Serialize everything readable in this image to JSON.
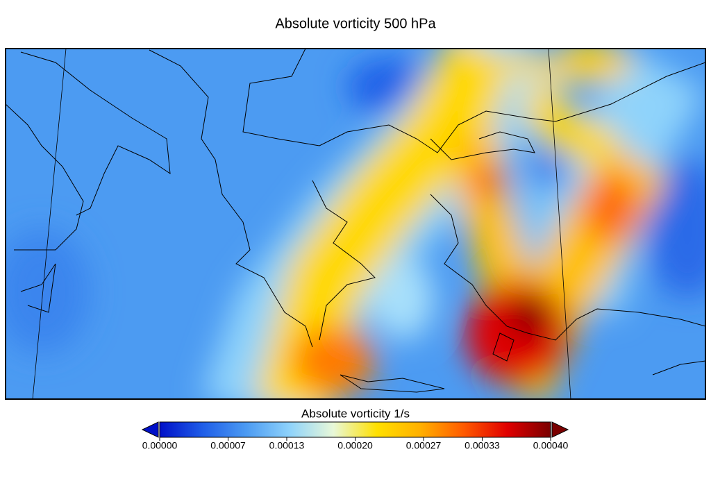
{
  "chart_data": {
    "type": "map",
    "title": "Absolute vorticity 500 hPa",
    "colorbar": {
      "label": "Absolute vorticity 1/s",
      "lim": [
        0,
        0.0004
      ],
      "ticks": [
        {
          "value": 0,
          "label": "0.00000"
        },
        {
          "value": 7e-05,
          "label": "0.00007"
        },
        {
          "value": 0.00013,
          "label": "0.00013"
        },
        {
          "value": 0.0002,
          "label": "0.00020"
        },
        {
          "value": 0.00027,
          "label": "0.00027"
        },
        {
          "value": 0.00033,
          "label": "0.00033"
        },
        {
          "value": 0.0004,
          "label": "0.00040"
        }
      ],
      "colors": [
        "#0010c8",
        "#1f5ee8",
        "#4c9bf2",
        "#8fd3fb",
        "#e8f8d8",
        "#ffe000",
        "#ffb000",
        "#ff5a00",
        "#e00000",
        "#7a0000"
      ],
      "extend": "both"
    }
  }
}
